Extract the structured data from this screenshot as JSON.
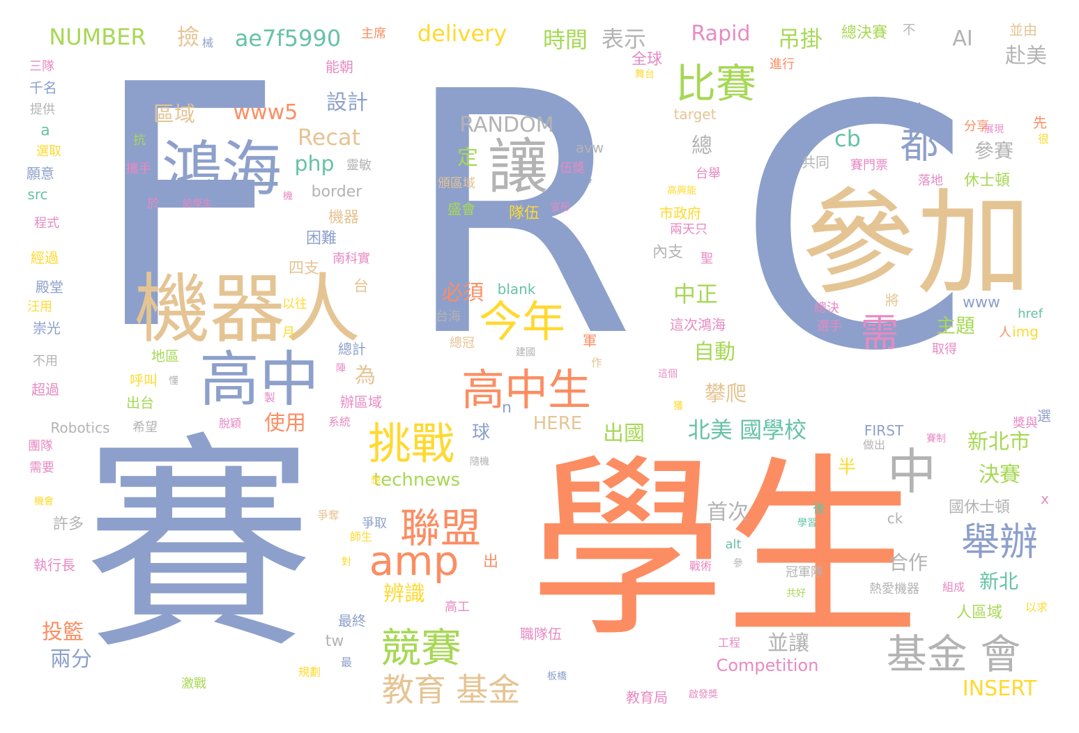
{
  "palette": {
    "blue": "#8da0cb",
    "orange": "#fc8d62",
    "tan": "#e5c494",
    "yellow": "#ffd92f",
    "green": "#a6d854",
    "pink": "#e78ac3",
    "teal": "#66c2a5",
    "gray": "#b3b3b3"
  },
  "words": [
    {
      "text": "F",
      "color": "blue"
    },
    {
      "text": "R",
      "color": "blue"
    },
    {
      "text": "C",
      "color": "blue"
    },
    {
      "text": "賽",
      "color": "blue"
    },
    {
      "text": "學生",
      "color": "orange"
    },
    {
      "text": "參加",
      "color": "tan"
    },
    {
      "text": "機器人",
      "color": "tan"
    },
    {
      "text": "鴻海",
      "color": "blue"
    },
    {
      "text": "讓",
      "color": "gray"
    },
    {
      "text": "比賽",
      "color": "green"
    },
    {
      "text": "高中",
      "color": "blue"
    },
    {
      "text": "高中生",
      "color": "orange"
    },
    {
      "text": "今年",
      "color": "yellow"
    },
    {
      "text": "挑戰",
      "color": "yellow"
    },
    {
      "text": "聯盟",
      "color": "orange"
    },
    {
      "text": "amp",
      "color": "orange"
    },
    {
      "text": "競賽",
      "color": "green"
    },
    {
      "text": "基金 會",
      "color": "gray"
    },
    {
      "text": "中",
      "color": "gray"
    },
    {
      "text": "舉辦",
      "color": "blue"
    },
    {
      "text": "需",
      "color": "pink"
    },
    {
      "text": "都",
      "color": "blue"
    },
    {
      "text": "教育 基金",
      "color": "tan"
    },
    {
      "text": "NUMBER",
      "color": "green"
    },
    {
      "text": "撿",
      "color": "tan"
    },
    {
      "text": "械",
      "color": "blue"
    },
    {
      "text": "ae7f5990",
      "color": "teal"
    },
    {
      "text": "主席",
      "color": "orange"
    },
    {
      "text": "delivery",
      "color": "yellow"
    },
    {
      "text": "時間",
      "color": "green"
    },
    {
      "text": "表示",
      "color": "gray"
    },
    {
      "text": "Rapid",
      "color": "pink"
    },
    {
      "text": "吊掛",
      "color": "green"
    },
    {
      "text": "總決賽",
      "color": "green"
    },
    {
      "text": "不",
      "color": "gray"
    },
    {
      "text": "AI",
      "color": "gray"
    },
    {
      "text": "並由",
      "color": "tan"
    },
    {
      "text": "赴美",
      "color": "gray"
    },
    {
      "text": "全球",
      "color": "pink"
    },
    {
      "text": "進行",
      "color": "orange"
    },
    {
      "text": "舞台",
      "color": "yellow"
    },
    {
      "text": "三隊",
      "color": "pink"
    },
    {
      "text": "能朝",
      "color": "pink"
    },
    {
      "text": "千名",
      "color": "blue"
    },
    {
      "text": "提供",
      "color": "gray"
    },
    {
      "text": "區域",
      "color": "tan"
    },
    {
      "text": "www5",
      "color": "orange"
    },
    {
      "text": "設計",
      "color": "blue"
    },
    {
      "text": "RANDOM",
      "color": "gray"
    },
    {
      "text": "target",
      "color": "tan"
    },
    {
      "text": "zoneid",
      "color": "blue"
    },
    {
      "text": "分享",
      "color": "orange"
    },
    {
      "text": "先",
      "color": "orange"
    },
    {
      "text": "很",
      "color": "yellow"
    },
    {
      "text": "展現",
      "color": "pink"
    },
    {
      "text": "a",
      "color": "teal"
    },
    {
      "text": "Recat",
      "color": "tan"
    },
    {
      "text": "抗",
      "color": "green"
    },
    {
      "text": "php",
      "color": "teal"
    },
    {
      "text": "靈敏",
      "color": "gray"
    },
    {
      "text": "avw",
      "color": "gray"
    },
    {
      "text": "cb",
      "color": "teal"
    },
    {
      "text": "總",
      "color": "gray"
    },
    {
      "text": "參賽",
      "color": "gray"
    },
    {
      "text": "選取",
      "color": "yellow"
    },
    {
      "text": "攜手",
      "color": "pink"
    },
    {
      "text": "願意",
      "color": "blue"
    },
    {
      "text": "src",
      "color": "teal"
    },
    {
      "text": "定",
      "color": "green"
    },
    {
      "text": "伍獎",
      "color": "pink"
    },
    {
      "text": "中學將",
      "color": "blue"
    },
    {
      "text": "共同",
      "color": "gray"
    },
    {
      "text": "賽門票",
      "color": "pink"
    },
    {
      "text": "台舉",
      "color": "pink"
    },
    {
      "text": "高興能",
      "color": "yellow"
    },
    {
      "text": "落地",
      "color": "pink"
    },
    {
      "text": "休士頓",
      "color": "green"
    },
    {
      "text": "border",
      "color": "gray"
    },
    {
      "text": "頒區域",
      "color": "tan"
    },
    {
      "text": "盛會",
      "color": "green"
    },
    {
      "text": "機",
      "color": "pink"
    },
    {
      "text": "於",
      "color": "pink"
    },
    {
      "text": "給學生",
      "color": "pink"
    },
    {
      "text": "市政府",
      "color": "yellow"
    },
    {
      "text": "兩天只",
      "color": "pink"
    },
    {
      "text": "程式",
      "color": "pink"
    },
    {
      "text": "機器",
      "color": "tan"
    },
    {
      "text": "隊伍",
      "color": "yellow"
    },
    {
      "text": "宣彤",
      "color": "pink"
    },
    {
      "text": "困難",
      "color": "blue"
    },
    {
      "text": "內支",
      "color": "gray"
    },
    {
      "text": "聖",
      "color": "pink"
    },
    {
      "text": "經過",
      "color": "yellow"
    },
    {
      "text": "四支",
      "color": "tan"
    },
    {
      "text": "南科實",
      "color": "pink"
    },
    {
      "text": "殿堂",
      "color": "blue"
    },
    {
      "text": "台",
      "color": "tan"
    },
    {
      "text": "中正",
      "color": "green"
    },
    {
      "text": "blank",
      "color": "teal"
    },
    {
      "text": "必須",
      "color": "orange"
    },
    {
      "text": "www",
      "color": "blue"
    },
    {
      "text": "將",
      "color": "tan"
    },
    {
      "text": "汪用",
      "color": "yellow"
    },
    {
      "text": "以往",
      "color": "yellow"
    },
    {
      "text": "總決",
      "color": "pink"
    },
    {
      "text": "href",
      "color": "teal"
    },
    {
      "text": "台海",
      "color": "gray"
    },
    {
      "text": "這次鴻海",
      "color": "pink"
    },
    {
      "text": "選手",
      "color": "pink"
    },
    {
      "text": "崇光",
      "color": "blue"
    },
    {
      "text": "月",
      "color": "yellow"
    },
    {
      "text": "總冠",
      "color": "tan"
    },
    {
      "text": "主題",
      "color": "green"
    },
    {
      "text": "img",
      "color": "yellow"
    },
    {
      "text": "人",
      "color": "orange"
    },
    {
      "text": "總計",
      "color": "blue"
    },
    {
      "text": "地區",
      "color": "green"
    },
    {
      "text": "建國",
      "color": "gray"
    },
    {
      "text": "軍",
      "color": "orange"
    },
    {
      "text": "自動",
      "color": "green"
    },
    {
      "text": "取得",
      "color": "pink"
    },
    {
      "text": "不用",
      "color": "gray"
    },
    {
      "text": "陣",
      "color": "pink"
    },
    {
      "text": "作",
      "color": "tan"
    },
    {
      "text": "為",
      "color": "tan"
    },
    {
      "text": "呼叫",
      "color": "yellow"
    },
    {
      "text": "懂",
      "color": "gray"
    },
    {
      "text": "這個",
      "color": "pink"
    },
    {
      "text": "超過",
      "color": "pink"
    },
    {
      "text": "製",
      "color": "pink"
    },
    {
      "text": "辦區域",
      "color": "pink"
    },
    {
      "text": "攀爬",
      "color": "tan"
    },
    {
      "text": "獲",
      "color": "yellow"
    },
    {
      "text": "出台",
      "color": "green"
    },
    {
      "text": "n",
      "color": "blue"
    },
    {
      "text": "Robotics",
      "color": "gray"
    },
    {
      "text": "希望",
      "color": "gray"
    },
    {
      "text": "脫穎",
      "color": "pink"
    },
    {
      "text": "系統",
      "color": "pink"
    },
    {
      "text": "使用",
      "color": "orange"
    },
    {
      "text": "HERE",
      "color": "tan"
    },
    {
      "text": "出國",
      "color": "green"
    },
    {
      "text": "北美 國學校",
      "color": "teal"
    },
    {
      "text": "獎與",
      "color": "pink"
    },
    {
      "text": "選",
      "color": "blue"
    },
    {
      "text": "FIRST",
      "color": "blue"
    },
    {
      "text": "球",
      "color": "blue"
    },
    {
      "text": "團隊",
      "color": "pink"
    },
    {
      "text": "做出",
      "color": "gray"
    },
    {
      "text": "賽制",
      "color": "pink"
    },
    {
      "text": "新北市",
      "color": "green"
    },
    {
      "text": "technews",
      "color": "green"
    },
    {
      "text": "隨機",
      "color": "gray"
    },
    {
      "text": "半",
      "color": "yellow"
    },
    {
      "text": "決賽",
      "color": "green"
    },
    {
      "text": "需要",
      "color": "pink"
    },
    {
      "text": "機會",
      "color": "yellow"
    },
    {
      "text": "想",
      "color": "yellow"
    },
    {
      "text": "x",
      "color": "pink"
    },
    {
      "text": "國休士頓",
      "color": "gray"
    },
    {
      "text": "爭奪",
      "color": "tan"
    },
    {
      "text": "首次",
      "color": "gray"
    },
    {
      "text": "後",
      "color": "teal"
    },
    {
      "text": "ck",
      "color": "gray"
    },
    {
      "text": "許多",
      "color": "gray"
    },
    {
      "text": "爭取",
      "color": "blue"
    },
    {
      "text": "學習",
      "color": "teal"
    },
    {
      "text": "師生",
      "color": "yellow"
    },
    {
      "text": "alt",
      "color": "teal"
    },
    {
      "text": "執行長",
      "color": "pink"
    },
    {
      "text": "對",
      "color": "yellow"
    },
    {
      "text": "出",
      "color": "orange"
    },
    {
      "text": "戰術",
      "color": "pink"
    },
    {
      "text": "參",
      "color": "gray"
    },
    {
      "text": "合作",
      "color": "gray"
    },
    {
      "text": "冠軍隊",
      "color": "gray"
    },
    {
      "text": "新北",
      "color": "teal"
    },
    {
      "text": "辨識",
      "color": "yellow"
    },
    {
      "text": "共好",
      "color": "green"
    },
    {
      "text": "熱愛機器",
      "color": "gray"
    },
    {
      "text": "組成",
      "color": "pink"
    },
    {
      "text": "高工",
      "color": "pink"
    },
    {
      "text": "人區域",
      "color": "green"
    },
    {
      "text": "以求",
      "color": "yellow"
    },
    {
      "text": "最終",
      "color": "blue"
    },
    {
      "text": "投籃",
      "color": "orange"
    },
    {
      "text": "職隊伍",
      "color": "pink"
    },
    {
      "text": "tw",
      "color": "gray"
    },
    {
      "text": "並讓",
      "color": "gray"
    },
    {
      "text": "工程",
      "color": "pink"
    },
    {
      "text": "兩分",
      "color": "blue"
    },
    {
      "text": "最",
      "color": "blue"
    },
    {
      "text": "Competition",
      "color": "pink"
    },
    {
      "text": "INSERT",
      "color": "yellow"
    },
    {
      "text": "規劃",
      "color": "yellow"
    },
    {
      "text": "激戰",
      "color": "green"
    },
    {
      "text": "板橋",
      "color": "blue"
    },
    {
      "text": "教育局",
      "color": "pink"
    },
    {
      "text": "啟發獎",
      "color": "pink"
    }
  ]
}
